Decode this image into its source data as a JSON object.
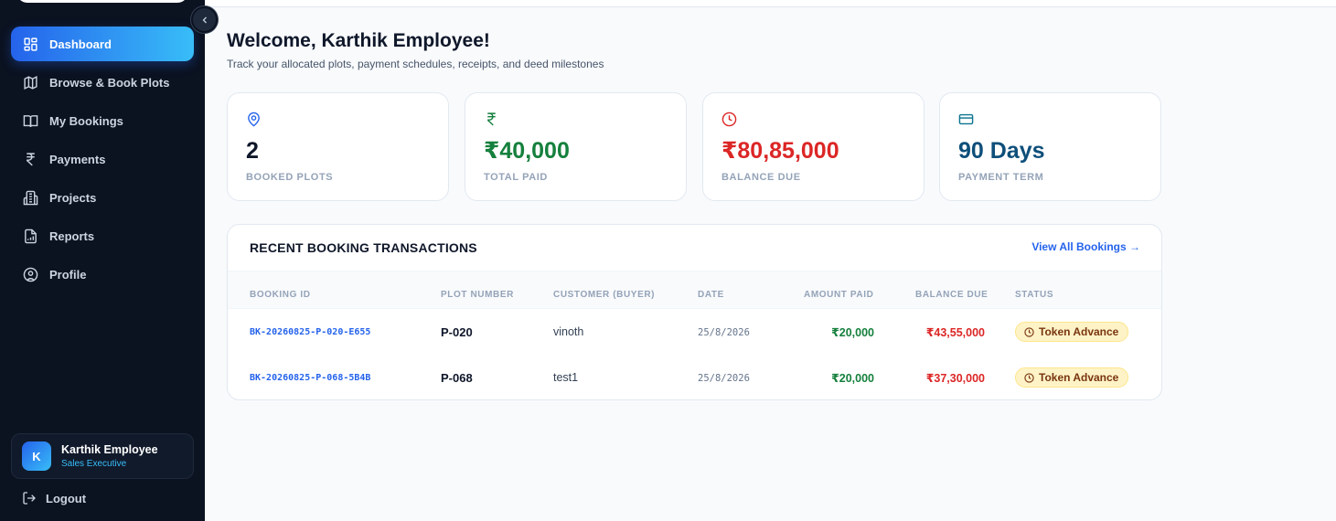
{
  "sidebar": {
    "items": [
      {
        "label": "Dashboard",
        "icon": "dashboard-grid-icon",
        "active": true
      },
      {
        "label": "Browse & Book Plots",
        "icon": "map-icon"
      },
      {
        "label": "My Bookings",
        "icon": "book-open-icon"
      },
      {
        "label": "Payments",
        "icon": "rupee-icon"
      },
      {
        "label": "Projects",
        "icon": "building-icon"
      },
      {
        "label": "Reports",
        "icon": "report-file-icon"
      },
      {
        "label": "Profile",
        "icon": "user-circle-icon"
      }
    ],
    "user": {
      "initial": "K",
      "name": "Karthik Employee",
      "role": "Sales Executive"
    },
    "logout_label": "Logout"
  },
  "header": {
    "title": "Welcome, Karthik Employee!",
    "subtitle": "Track your allocated plots, payment schedules, receipts, and deed milestones"
  },
  "stats": [
    {
      "value": "2",
      "label": "BOOKED PLOTS",
      "icon": "map-pin-icon",
      "color": "#0f172a",
      "icon_color": "#2563eb"
    },
    {
      "value": "₹40,000",
      "label": "TOTAL PAID",
      "icon": "rupee-icon",
      "color": "#15803d",
      "icon_color": "#15803d"
    },
    {
      "value": "₹80,85,000",
      "label": "BALANCE DUE",
      "icon": "clock-icon",
      "color": "#dc2626",
      "icon_color": "#dc2626"
    },
    {
      "value": "90 Days",
      "label": "PAYMENT TERM",
      "icon": "credit-card-icon",
      "color": "#0e4f7a",
      "icon_color": "#0e7490"
    }
  ],
  "transactions": {
    "title": "RECENT BOOKING TRANSACTIONS",
    "view_all": "View All Bookings →",
    "columns": [
      "BOOKING ID",
      "PLOT NUMBER",
      "CUSTOMER (BUYER)",
      "DATE",
      "AMOUNT PAID",
      "BALANCE DUE",
      "STATUS"
    ],
    "rows": [
      {
        "booking_id": "BK-20260825-P-020-E655",
        "plot": "P-020",
        "customer": "vinoth",
        "date": "25/8/2026",
        "paid": "₹20,000",
        "balance": "₹43,55,000",
        "status": "Token Advance"
      },
      {
        "booking_id": "BK-20260825-P-068-5B4B",
        "plot": "P-068",
        "customer": "test1",
        "date": "25/8/2026",
        "paid": "₹20,000",
        "balance": "₹37,30,000",
        "status": "Token Advance"
      }
    ]
  }
}
